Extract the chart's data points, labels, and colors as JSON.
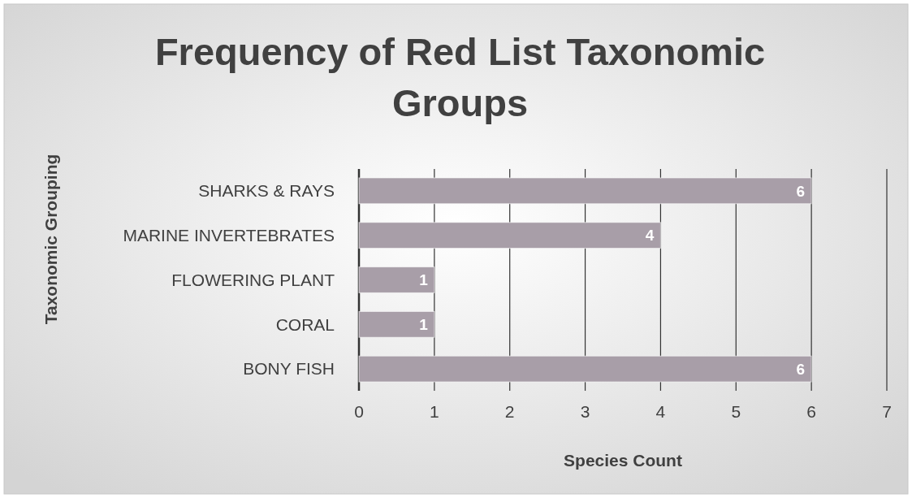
{
  "chart_data": {
    "type": "bar",
    "orientation": "horizontal",
    "title": "Frequency of Red List Taxonomic Groups",
    "xlabel": "Species Count",
    "ylabel": "Taxonomic Grouping",
    "categories": [
      "SHARKS & RAYS",
      "MARINE INVERTEBRATES",
      "FLOWERING PLANT",
      "CORAL",
      "BONY FISH"
    ],
    "values": [
      6,
      4,
      1,
      1,
      6
    ],
    "color": "#a89ea8",
    "xlim": [
      0,
      7
    ],
    "xticks": [
      0,
      1,
      2,
      3,
      4,
      5,
      6,
      7
    ],
    "grid": "x",
    "data_labels": true
  }
}
